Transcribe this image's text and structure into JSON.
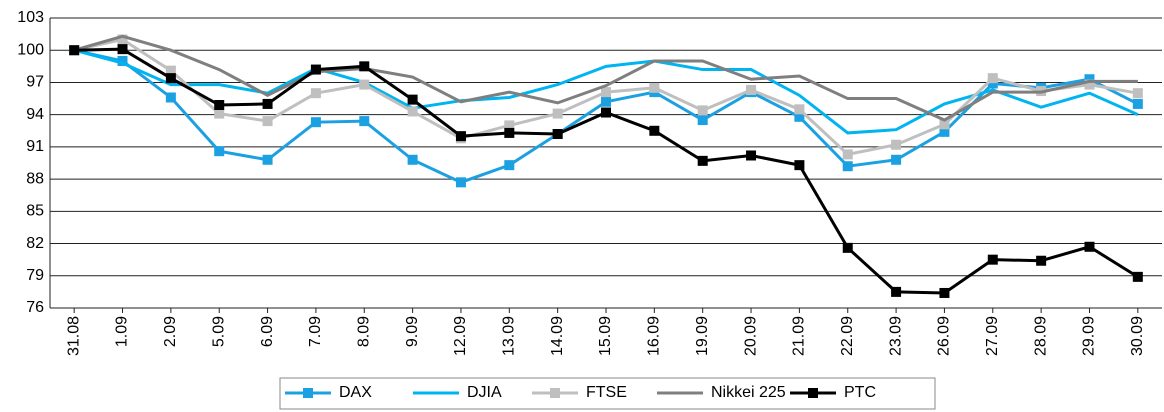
{
  "chart_data": {
    "type": "line",
    "categories": [
      "31.08",
      "1.09",
      "2.09",
      "5.09",
      "6.09",
      "7.09",
      "8.09",
      "9.09",
      "12.09",
      "13.09",
      "14.09",
      "15.09",
      "16.09",
      "19.09",
      "20.09",
      "21.09",
      "22.09",
      "23.09",
      "26.09",
      "27.09",
      "28.09",
      "29.09",
      "30.09"
    ],
    "series": [
      {
        "name": "DAX",
        "color": "#1ba1e2",
        "marker": "square",
        "values": [
          100,
          99.0,
          95.6,
          90.6,
          89.8,
          93.3,
          93.4,
          89.8,
          87.7,
          89.3,
          92.2,
          95.2,
          96.1,
          93.5,
          96.1,
          93.8,
          89.2,
          89.8,
          92.4,
          96.9,
          96.5,
          97.3,
          95.0
        ]
      },
      {
        "name": "DJIA",
        "color": "#00b4f0",
        "marker": "none",
        "values": [
          100,
          98.8,
          96.8,
          96.8,
          96.0,
          98.3,
          97.0,
          94.6,
          95.3,
          95.6,
          96.8,
          98.5,
          99.0,
          98.2,
          98.2,
          95.8,
          92.3,
          92.6,
          95.0,
          96.3,
          94.7,
          96.0,
          94.0
        ]
      },
      {
        "name": "FTSE",
        "color": "#bfbfbf",
        "marker": "square",
        "values": [
          100,
          101.0,
          98.1,
          94.1,
          93.4,
          96.0,
          96.8,
          94.3,
          91.8,
          93.0,
          94.1,
          96.1,
          96.5,
          94.4,
          96.3,
          94.5,
          90.3,
          91.2,
          93.1,
          97.4,
          96.2,
          96.8,
          96.0
        ]
      },
      {
        "name": "Nikkei 225",
        "color": "#7f7f7f",
        "marker": "none",
        "values": [
          100,
          101.3,
          100.0,
          98.2,
          95.8,
          98.0,
          98.3,
          97.5,
          95.2,
          96.1,
          95.1,
          96.7,
          99.0,
          99.0,
          97.3,
          97.6,
          95.5,
          95.5,
          93.5,
          96.1,
          96.1,
          97.1,
          97.1
        ]
      },
      {
        "name": "PTC",
        "color": "#000000",
        "marker": "square",
        "values": [
          100,
          100.1,
          97.4,
          94.9,
          95.0,
          98.2,
          98.5,
          95.4,
          92.0,
          92.3,
          92.2,
          94.2,
          92.5,
          89.7,
          90.2,
          89.3,
          81.6,
          77.5,
          77.4,
          80.5,
          80.4,
          81.7,
          78.9
        ]
      }
    ],
    "ylim": [
      76,
      103
    ],
    "yticks": [
      76,
      79,
      82,
      85,
      88,
      91,
      94,
      97,
      100,
      103
    ],
    "grid": true,
    "legend": "bottom"
  }
}
